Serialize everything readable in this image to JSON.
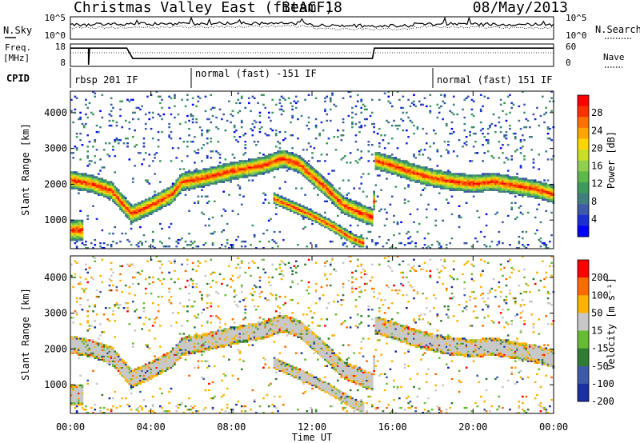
{
  "header": {
    "station": "Christmas Valley East (fitACF)",
    "beam": "Beam 18",
    "date": "08/May/2013"
  },
  "top_panel": {
    "left_label": "N.Sky",
    "left_ticks": [
      "10^5",
      "10^0"
    ],
    "right_label": "N.Search",
    "right_ticks": [
      "10^5",
      "10^0"
    ]
  },
  "freq_panel": {
    "left_label_1": "Freq.",
    "left_label_2": "[MHz]",
    "left_ticks": [
      "18",
      "8"
    ],
    "right_label": "Nave",
    "right_ticks": [
      "60",
      "0"
    ]
  },
  "cpid": {
    "label": "CPID",
    "segments": [
      {
        "start_hour": 0,
        "text": "rbsp 201 IF"
      },
      {
        "start_hour": 6,
        "text": "normal (fast) -151 IF"
      },
      {
        "start_hour": 18,
        "text": "normal (fast) 151 IF"
      }
    ]
  },
  "chart_data": [
    {
      "type": "heatmap",
      "panel": "power",
      "ylabel": "Slant Range [km]",
      "yticks": [
        1000,
        2000,
        3000,
        4000
      ],
      "ylim": [
        200,
        4600
      ],
      "xlim_hours": [
        0,
        24
      ],
      "colorbar": {
        "label": "Power [dB]",
        "ticks": [
          4,
          8,
          12,
          16,
          20,
          24,
          28
        ],
        "range": [
          0,
          32
        ],
        "colors": [
          "#0000ff",
          "#1a2fd6",
          "#3c5aa8",
          "#3f7f7f",
          "#3c9a5a",
          "#5cb84a",
          "#8fd050",
          "#c8e020",
          "#ffd700",
          "#ffa500",
          "#ff7000",
          "#ff3000",
          "#ff0000"
        ]
      },
      "bands": [
        {
          "name": "main",
          "points": [
            [
              0,
              2100
            ],
            [
              1,
              2000
            ],
            [
              2,
              1800
            ],
            [
              3,
              1150
            ],
            [
              4,
              1400
            ],
            [
              5,
              1700
            ],
            [
              5.5,
              2050
            ],
            [
              6.5,
              2150
            ],
            [
              8,
              2350
            ],
            [
              9.5,
              2500
            ],
            [
              10.5,
              2700
            ],
            [
              11.3,
              2550
            ],
            [
              12,
              2200
            ],
            [
              12.8,
              1800
            ],
            [
              13.5,
              1400
            ],
            [
              14.5,
              1150
            ],
            [
              15,
              1050
            ],
            [
              15.1,
              2650
            ],
            [
              16,
              2500
            ],
            [
              17,
              2300
            ],
            [
              18,
              2150
            ],
            [
              19,
              2050
            ],
            [
              20,
              2000
            ],
            [
              21,
              2050
            ],
            [
              22,
              1950
            ],
            [
              23,
              1850
            ],
            [
              24,
              1700
            ]
          ],
          "width": 250
        },
        {
          "name": "lower",
          "points": [
            [
              10,
              1600
            ],
            [
              11,
              1350
            ],
            [
              12,
              1100
            ],
            [
              13,
              800
            ],
            [
              14,
              450
            ],
            [
              14.5,
              350
            ]
          ],
          "width": 150
        },
        {
          "name": "near",
          "points": [
            [
              0,
              700
            ],
            [
              0.6,
              700
            ]
          ],
          "width": 300
        }
      ]
    },
    {
      "type": "heatmap",
      "panel": "velocity",
      "ylabel": "Slant Range [km]",
      "yticks": [
        1000,
        2000,
        3000,
        4000
      ],
      "ylim": [
        200,
        4600
      ],
      "xlabel": "Time UT",
      "xticks": [
        "00:00",
        "04:00",
        "08:00",
        "12:00",
        "16:00",
        "20:00",
        "00:00"
      ],
      "xlim_hours": [
        0,
        24
      ],
      "colorbar": {
        "label": "Velocity [m s⁻¹]",
        "ticks": [
          "200",
          "100",
          "50",
          "15",
          "-15",
          "-50",
          "-100",
          "-200"
        ],
        "colors": [
          "#1a2fa0",
          "#3c5aa8",
          "#2e7d32",
          "#66bb33",
          "#c8c8c8",
          "#ffb300",
          "#ff6a00",
          "#ff0000"
        ]
      }
    }
  ]
}
